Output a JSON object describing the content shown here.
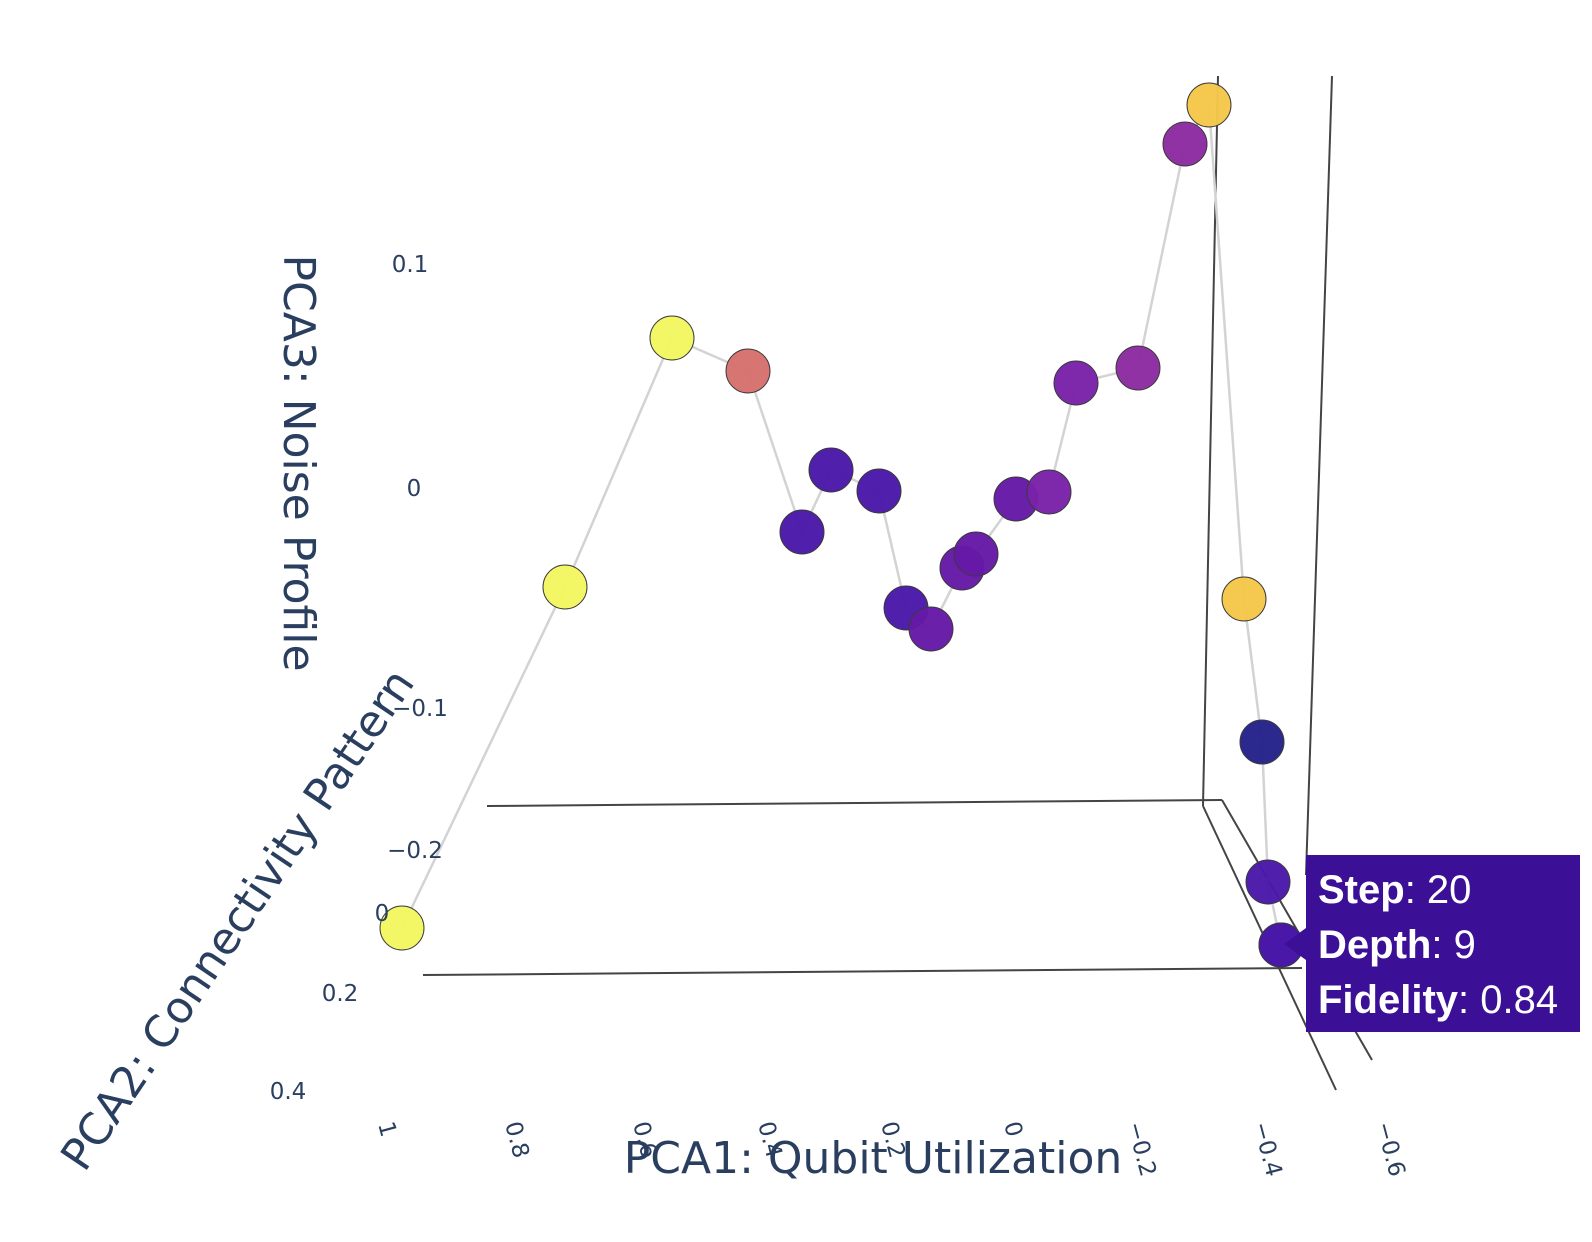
{
  "chart_data": {
    "type": "scatter3d",
    "mode": "lines+markers",
    "axes": {
      "x": {
        "title": "PCA1: Qubit Utilization",
        "ticks": [
          "1",
          "0.8",
          "0.6",
          "0.4",
          "0.2",
          "0",
          "−0.2",
          "−0.4",
          "−0.6"
        ]
      },
      "y": {
        "title": "PCA2: Connectivity Pattern",
        "ticks": [
          "0",
          "0.2",
          "0.4"
        ]
      },
      "z": {
        "title": "PCA3: Noise Profile",
        "ticks": [
          "0.1",
          "0",
          "−0.1",
          "−0.2"
        ]
      }
    },
    "colorscale": "Plasma",
    "colors": {
      "line": "#d3d3d3",
      "axis_frame": "#444444",
      "text": "#2a3f5f",
      "hover_bg": "#3b0f96",
      "dark_navy": "#24228a",
      "indigo": "#4a18a8",
      "violet": "#6519a6",
      "purple": "#7a22a9",
      "magenta": "#8c2ba0",
      "salmon": "#d5716c",
      "gold": "#f5c64a",
      "yellow": "#f3f761"
    },
    "points": [
      {
        "color": "#f3f761"
      },
      {
        "color": "#f3f761"
      },
      {
        "color": "#f3f761"
      },
      {
        "color": "#d5716c"
      },
      {
        "color": "#4a18a8"
      },
      {
        "color": "#4a18a8"
      },
      {
        "color": "#4a18a8"
      },
      {
        "color": "#4a18a8"
      },
      {
        "color": "#6519a6"
      },
      {
        "color": "#6519a6"
      },
      {
        "color": "#6519a6"
      },
      {
        "color": "#6519a6"
      },
      {
        "color": "#7a22a9"
      },
      {
        "color": "#7a22a9"
      },
      {
        "color": "#8c2ba0"
      },
      {
        "color": "#8c2ba0"
      },
      {
        "color": "#f5c64a"
      },
      {
        "color": "#f5c64a"
      },
      {
        "color": "#24228a"
      },
      {
        "color": "#4a18a8"
      },
      {
        "color": "#4a18a8"
      },
      {
        "color": "#4a18a8"
      }
    ],
    "hover": {
      "step_label": "Step",
      "step_value": "20",
      "depth_label": "Depth",
      "depth_value": "9",
      "fidelity_label": "Fidelity",
      "fidelity_value": "0.84"
    }
  }
}
